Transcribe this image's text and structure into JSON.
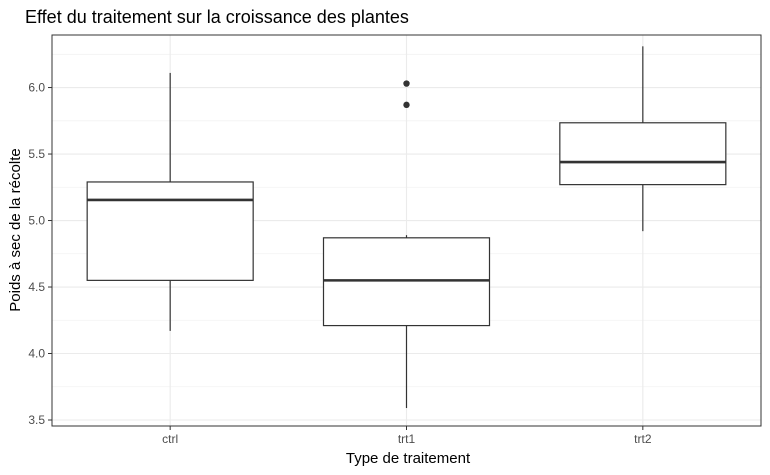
{
  "chart_data": {
    "type": "boxplot",
    "title": "Effet du traitement sur la croissance des plantes",
    "xlabel": "Type de traitement",
    "ylabel": "Poids à sec de la récolte",
    "categories": [
      "ctrl",
      "trt1",
      "trt2"
    ],
    "ylim": [
      3.5,
      6.35
    ],
    "yticks": [
      3.5,
      4.0,
      4.5,
      5.0,
      5.5,
      6.0
    ],
    "ytick_labels": [
      "3.5",
      "4.0",
      "4.5",
      "5.0",
      "5.5",
      "6.0"
    ],
    "grid": true,
    "boxes": [
      {
        "category": "ctrl",
        "whisker_low": 4.17,
        "q1": 4.55,
        "median": 5.155,
        "q3": 5.29,
        "whisker_high": 6.11,
        "outliers": []
      },
      {
        "category": "trt1",
        "whisker_low": 3.59,
        "q1": 4.21,
        "median": 4.55,
        "q3": 4.87,
        "whisker_high": 4.89,
        "outliers": [
          5.87,
          6.03
        ]
      },
      {
        "category": "trt2",
        "whisker_low": 4.92,
        "q1": 5.27,
        "median": 5.44,
        "q3": 5.735,
        "whisker_high": 6.31,
        "outliers": []
      }
    ]
  }
}
